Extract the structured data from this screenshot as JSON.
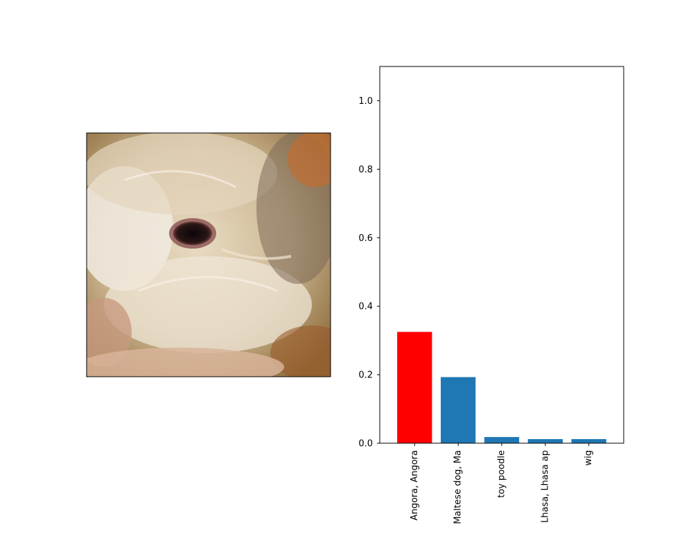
{
  "image_panel": {
    "content": "close-up photo of a fluffy white-and-cream animal's face with a dark eye, held in a hand"
  },
  "chart_data": {
    "type": "bar",
    "categories": [
      "Angora, Angora",
      "Maltese dog, Ma",
      "toy poodle",
      "Lhasa, Lhasa ap",
      "wig"
    ],
    "values": [
      0.325,
      0.193,
      0.018,
      0.012,
      0.012
    ],
    "colors": [
      "#ff0000",
      "#1f77b4",
      "#1f77b4",
      "#1f77b4",
      "#1f77b4"
    ],
    "yticks": [
      0.0,
      0.2,
      0.4,
      0.6,
      0.8,
      1.0
    ],
    "ytick_labels": [
      "0.0",
      "0.2",
      "0.4",
      "0.6",
      "0.8",
      "1.0"
    ],
    "ylim": [
      0,
      1.1
    ],
    "grid": false,
    "legend": "none",
    "title": "",
    "xlabel": "",
    "ylabel": ""
  }
}
